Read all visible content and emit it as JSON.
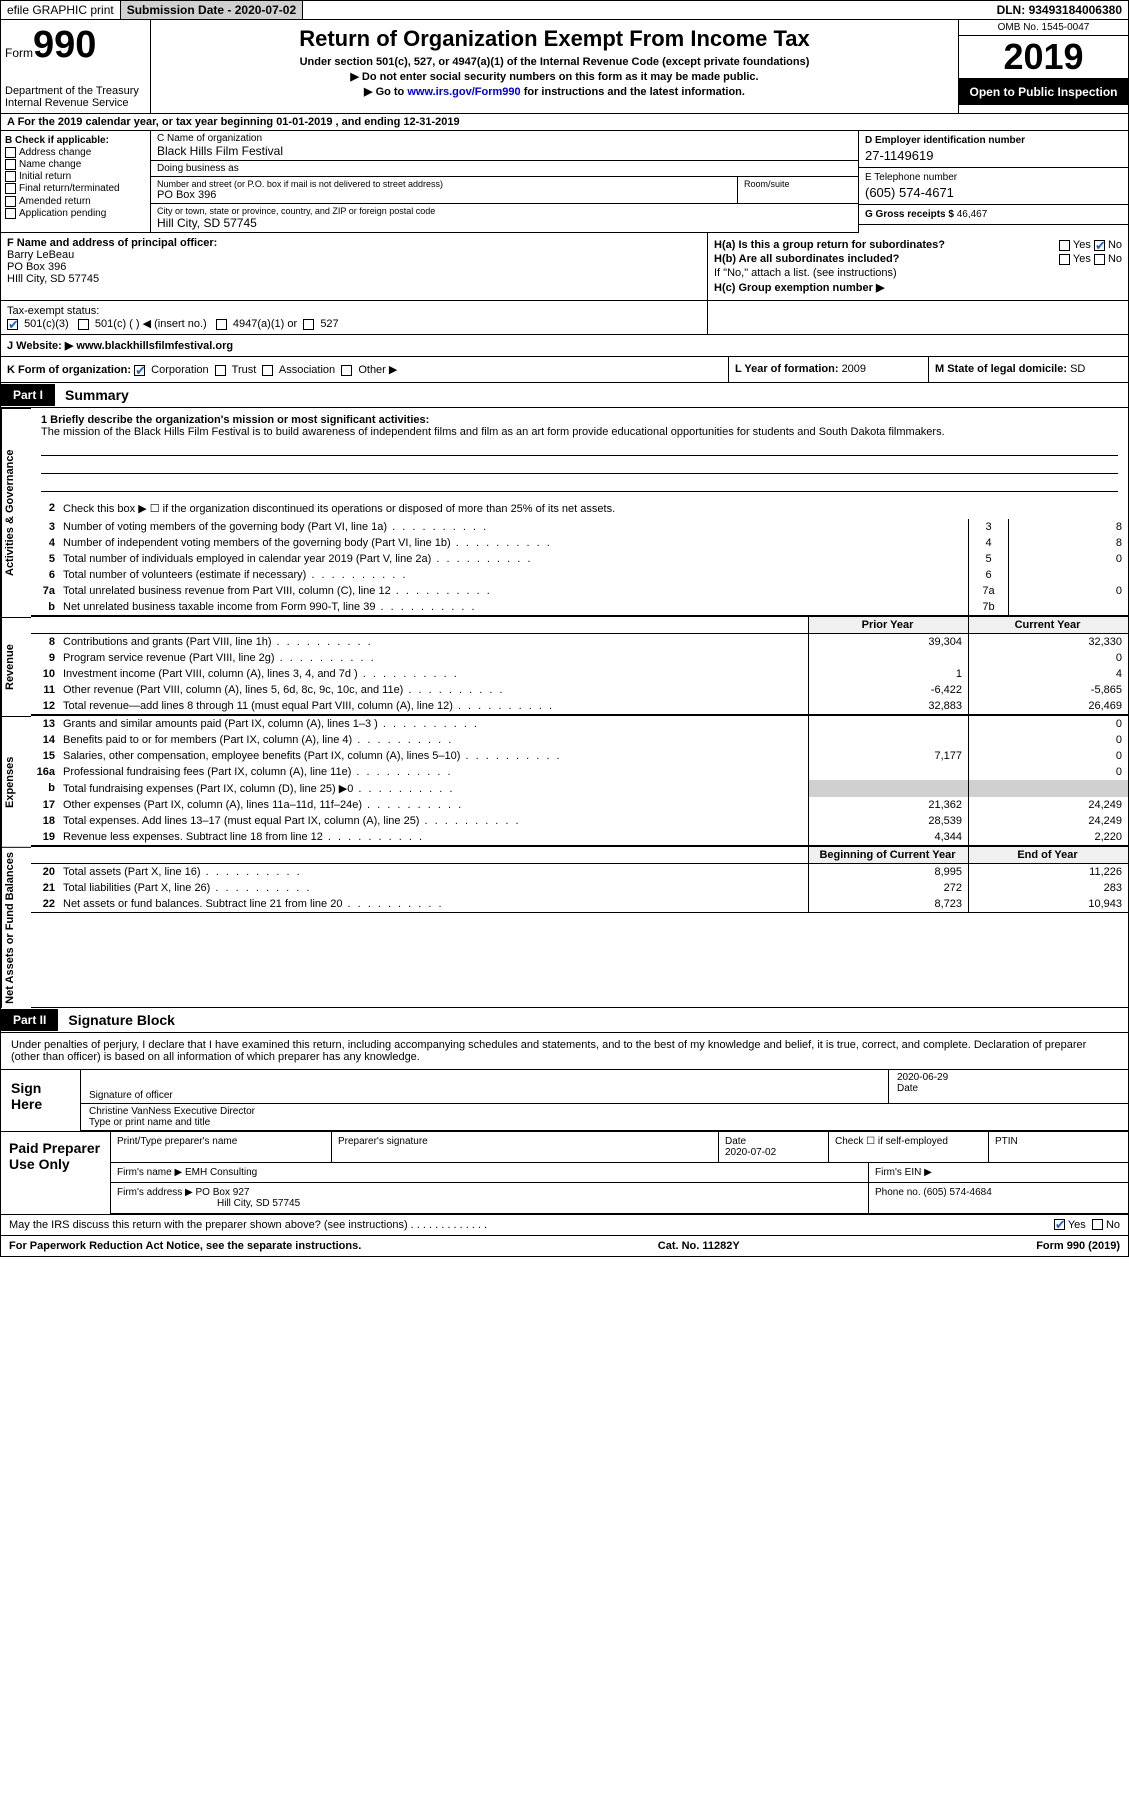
{
  "topbar": {
    "efile": "efile GRAPHIC print",
    "sub_label": "Submission Date - ",
    "sub_date": "2020-07-02",
    "dln_label": "DLN: ",
    "dln": "93493184006380"
  },
  "header": {
    "form_word": "Form",
    "form_num": "990",
    "dept": "Department of the Treasury\nInternal Revenue Service",
    "title": "Return of Organization Exempt From Income Tax",
    "subtitle": "Under section 501(c), 527, or 4947(a)(1) of the Internal Revenue Code (except private foundations)",
    "note1": "▶ Do not enter social security numbers on this form as it may be made public.",
    "note2_pre": "▶ Go to ",
    "note2_link": "www.irs.gov/Form990",
    "note2_post": " for instructions and the latest information.",
    "omb": "OMB No. 1545-0047",
    "year": "2019",
    "open": "Open to Public Inspection"
  },
  "year_line": "A For the 2019 calendar year, or tax year beginning 01-01-2019    , and ending 12-31-2019",
  "block_b": {
    "title": "B Check if applicable:",
    "opts": [
      "Address change",
      "Name change",
      "Initial return",
      "Final return/terminated",
      "Amended return",
      "Application pending"
    ]
  },
  "block_c": {
    "name_lbl": "C Name of organization",
    "name": "Black Hills Film Festival",
    "dba_lbl": "Doing business as",
    "dba": "",
    "street_lbl": "Number and street (or P.O. box if mail is not delivered to street address)",
    "street": "PO Box 396",
    "room_lbl": "Room/suite",
    "city_lbl": "City or town, state or province, country, and ZIP or foreign postal code",
    "city": "Hill City, SD  57745"
  },
  "block_d": {
    "ein_lbl": "D Employer identification number",
    "ein": "27-1149619",
    "phone_lbl": "E Telephone number",
    "phone": "(605) 574-4671",
    "gross_lbl": "G Gross receipts $ ",
    "gross": "46,467"
  },
  "block_f": {
    "lbl": "F  Name and address of principal officer:",
    "name": "Barry LeBeau",
    "addr1": "PO Box 396",
    "addr2": "HIll City, SD  57745"
  },
  "block_h": {
    "a": "H(a)  Is this a group return for subordinates?",
    "a_yes": "Yes",
    "a_no": "No",
    "b": "H(b)  Are all subordinates included?",
    "b_yes": "Yes",
    "b_no": "No",
    "b_note": "If \"No,\" attach a list. (see instructions)",
    "c": "H(c)  Group exemption number ▶"
  },
  "tax_status": {
    "lbl": "Tax-exempt status:",
    "o1": "501(c)(3)",
    "o2": "501(c) (  ) ◀ (insert no.)",
    "o3": "4947(a)(1) or",
    "o4": "527"
  },
  "website": {
    "lbl": "J   Website: ▶  ",
    "val": "www.blackhillsfilmfestival.org"
  },
  "k_row": {
    "k": "K Form of organization:",
    "opts": [
      "Corporation",
      "Trust",
      "Association",
      "Other ▶"
    ],
    "l_lbl": "L Year of formation: ",
    "l_val": "2009",
    "m_lbl": "M State of legal domicile: ",
    "m_val": "SD"
  },
  "parts": {
    "p1": "Part I",
    "p1_title": "Summary",
    "p2": "Part II",
    "p2_title": "Signature Block"
  },
  "vlabels": {
    "a": "Activities & Governance",
    "r": "Revenue",
    "e": "Expenses",
    "n": "Net Assets or Fund Balances"
  },
  "mission": {
    "lbl": "1   Briefly describe the organization's mission or most significant activities:",
    "text": "The mission of the Black Hills Film Festival is to build awareness of independent films and film as an art form provide educational opportunities for students and South Dakota filmmakers."
  },
  "line2": "Check this box ▶ ☐ if the organization discontinued its operations or disposed of more than 25% of its net assets.",
  "gov_rows": [
    {
      "n": "3",
      "t": "Number of voting members of the governing body (Part VI, line 1a)",
      "box": "3",
      "v": "8"
    },
    {
      "n": "4",
      "t": "Number of independent voting members of the governing body (Part VI, line 1b)",
      "box": "4",
      "v": "8"
    },
    {
      "n": "5",
      "t": "Total number of individuals employed in calendar year 2019 (Part V, line 2a)",
      "box": "5",
      "v": "0"
    },
    {
      "n": "6",
      "t": "Total number of volunteers (estimate if necessary)",
      "box": "6",
      "v": ""
    },
    {
      "n": "7a",
      "t": "Total unrelated business revenue from Part VIII, column (C), line 12",
      "box": "7a",
      "v": "0"
    },
    {
      "n": "b",
      "t": "Net unrelated business taxable income from Form 990-T, line 39",
      "box": "7b",
      "v": ""
    }
  ],
  "fin_head": {
    "py": "Prior Year",
    "cy": "Current Year"
  },
  "rev_rows": [
    {
      "n": "8",
      "t": "Contributions and grants (Part VIII, line 1h)",
      "py": "39,304",
      "cy": "32,330"
    },
    {
      "n": "9",
      "t": "Program service revenue (Part VIII, line 2g)",
      "py": "",
      "cy": "0"
    },
    {
      "n": "10",
      "t": "Investment income (Part VIII, column (A), lines 3, 4, and 7d )",
      "py": "1",
      "cy": "4"
    },
    {
      "n": "11",
      "t": "Other revenue (Part VIII, column (A), lines 5, 6d, 8c, 9c, 10c, and 11e)",
      "py": "-6,422",
      "cy": "-5,865"
    },
    {
      "n": "12",
      "t": "Total revenue—add lines 8 through 11 (must equal Part VIII, column (A), line 12)",
      "py": "32,883",
      "cy": "26,469"
    }
  ],
  "exp_rows": [
    {
      "n": "13",
      "t": "Grants and similar amounts paid (Part IX, column (A), lines 1–3 )",
      "py": "",
      "cy": "0"
    },
    {
      "n": "14",
      "t": "Benefits paid to or for members (Part IX, column (A), line 4)",
      "py": "",
      "cy": "0"
    },
    {
      "n": "15",
      "t": "Salaries, other compensation, employee benefits (Part IX, column (A), lines 5–10)",
      "py": "7,177",
      "cy": "0"
    },
    {
      "n": "16a",
      "t": "Professional fundraising fees (Part IX, column (A), line 11e)",
      "py": "",
      "cy": "0"
    },
    {
      "n": "b",
      "t": "Total fundraising expenses (Part IX, column (D), line 25) ▶0",
      "py": "SHADE",
      "cy": "SHADE"
    },
    {
      "n": "17",
      "t": "Other expenses (Part IX, column (A), lines 11a–11d, 11f–24e)",
      "py": "21,362",
      "cy": "24,249"
    },
    {
      "n": "18",
      "t": "Total expenses. Add lines 13–17 (must equal Part IX, column (A), line 25)",
      "py": "28,539",
      "cy": "24,249"
    },
    {
      "n": "19",
      "t": "Revenue less expenses. Subtract line 18 from line 12",
      "py": "4,344",
      "cy": "2,220"
    }
  ],
  "net_head": {
    "py": "Beginning of Current Year",
    "cy": "End of Year"
  },
  "net_rows": [
    {
      "n": "20",
      "t": "Total assets (Part X, line 16)",
      "py": "8,995",
      "cy": "11,226"
    },
    {
      "n": "21",
      "t": "Total liabilities (Part X, line 26)",
      "py": "272",
      "cy": "283"
    },
    {
      "n": "22",
      "t": "Net assets or fund balances. Subtract line 21 from line 20",
      "py": "8,723",
      "cy": "10,943"
    }
  ],
  "sig_intro": "Under penalties of perjury, I declare that I have examined this return, including accompanying schedules and statements, and to the best of my knowledge and belief, it is true, correct, and complete. Declaration of preparer (other than officer) is based on all information of which preparer has any knowledge.",
  "sign": {
    "here": "Sign Here",
    "sig_lbl": "Signature of officer",
    "date_lbl": "Date",
    "date": "2020-06-29",
    "name": "Christine VanNess  Executive Director",
    "name_lbl": "Type or print name and title"
  },
  "paid": {
    "here": "Paid Preparer Use Only",
    "c1": "Print/Type preparer's name",
    "c2": "Preparer's signature",
    "c3_lbl": "Date",
    "c3": "2020-07-02",
    "c4": "Check ☐ if self-employed",
    "c5": "PTIN",
    "firm_name_lbl": "Firm's name    ▶ ",
    "firm_name": "EMH Consulting",
    "firm_ein_lbl": "Firm's EIN ▶",
    "firm_addr_lbl": "Firm's address ▶ ",
    "firm_addr": "PO Box 927",
    "firm_addr2": "Hill City, SD  57745",
    "phone_lbl": "Phone no. ",
    "phone": "(605) 574-4684"
  },
  "discuss": {
    "q": "May the IRS discuss this return with the preparer shown above? (see instructions)   .   .   .   .   .   .   .   .   .   .   .   .   .",
    "yes": "Yes",
    "no": "No"
  },
  "footer": {
    "l": "For Paperwork Reduction Act Notice, see the separate instructions.",
    "c": "Cat. No. 11282Y",
    "r": "Form 990 (2019)"
  }
}
